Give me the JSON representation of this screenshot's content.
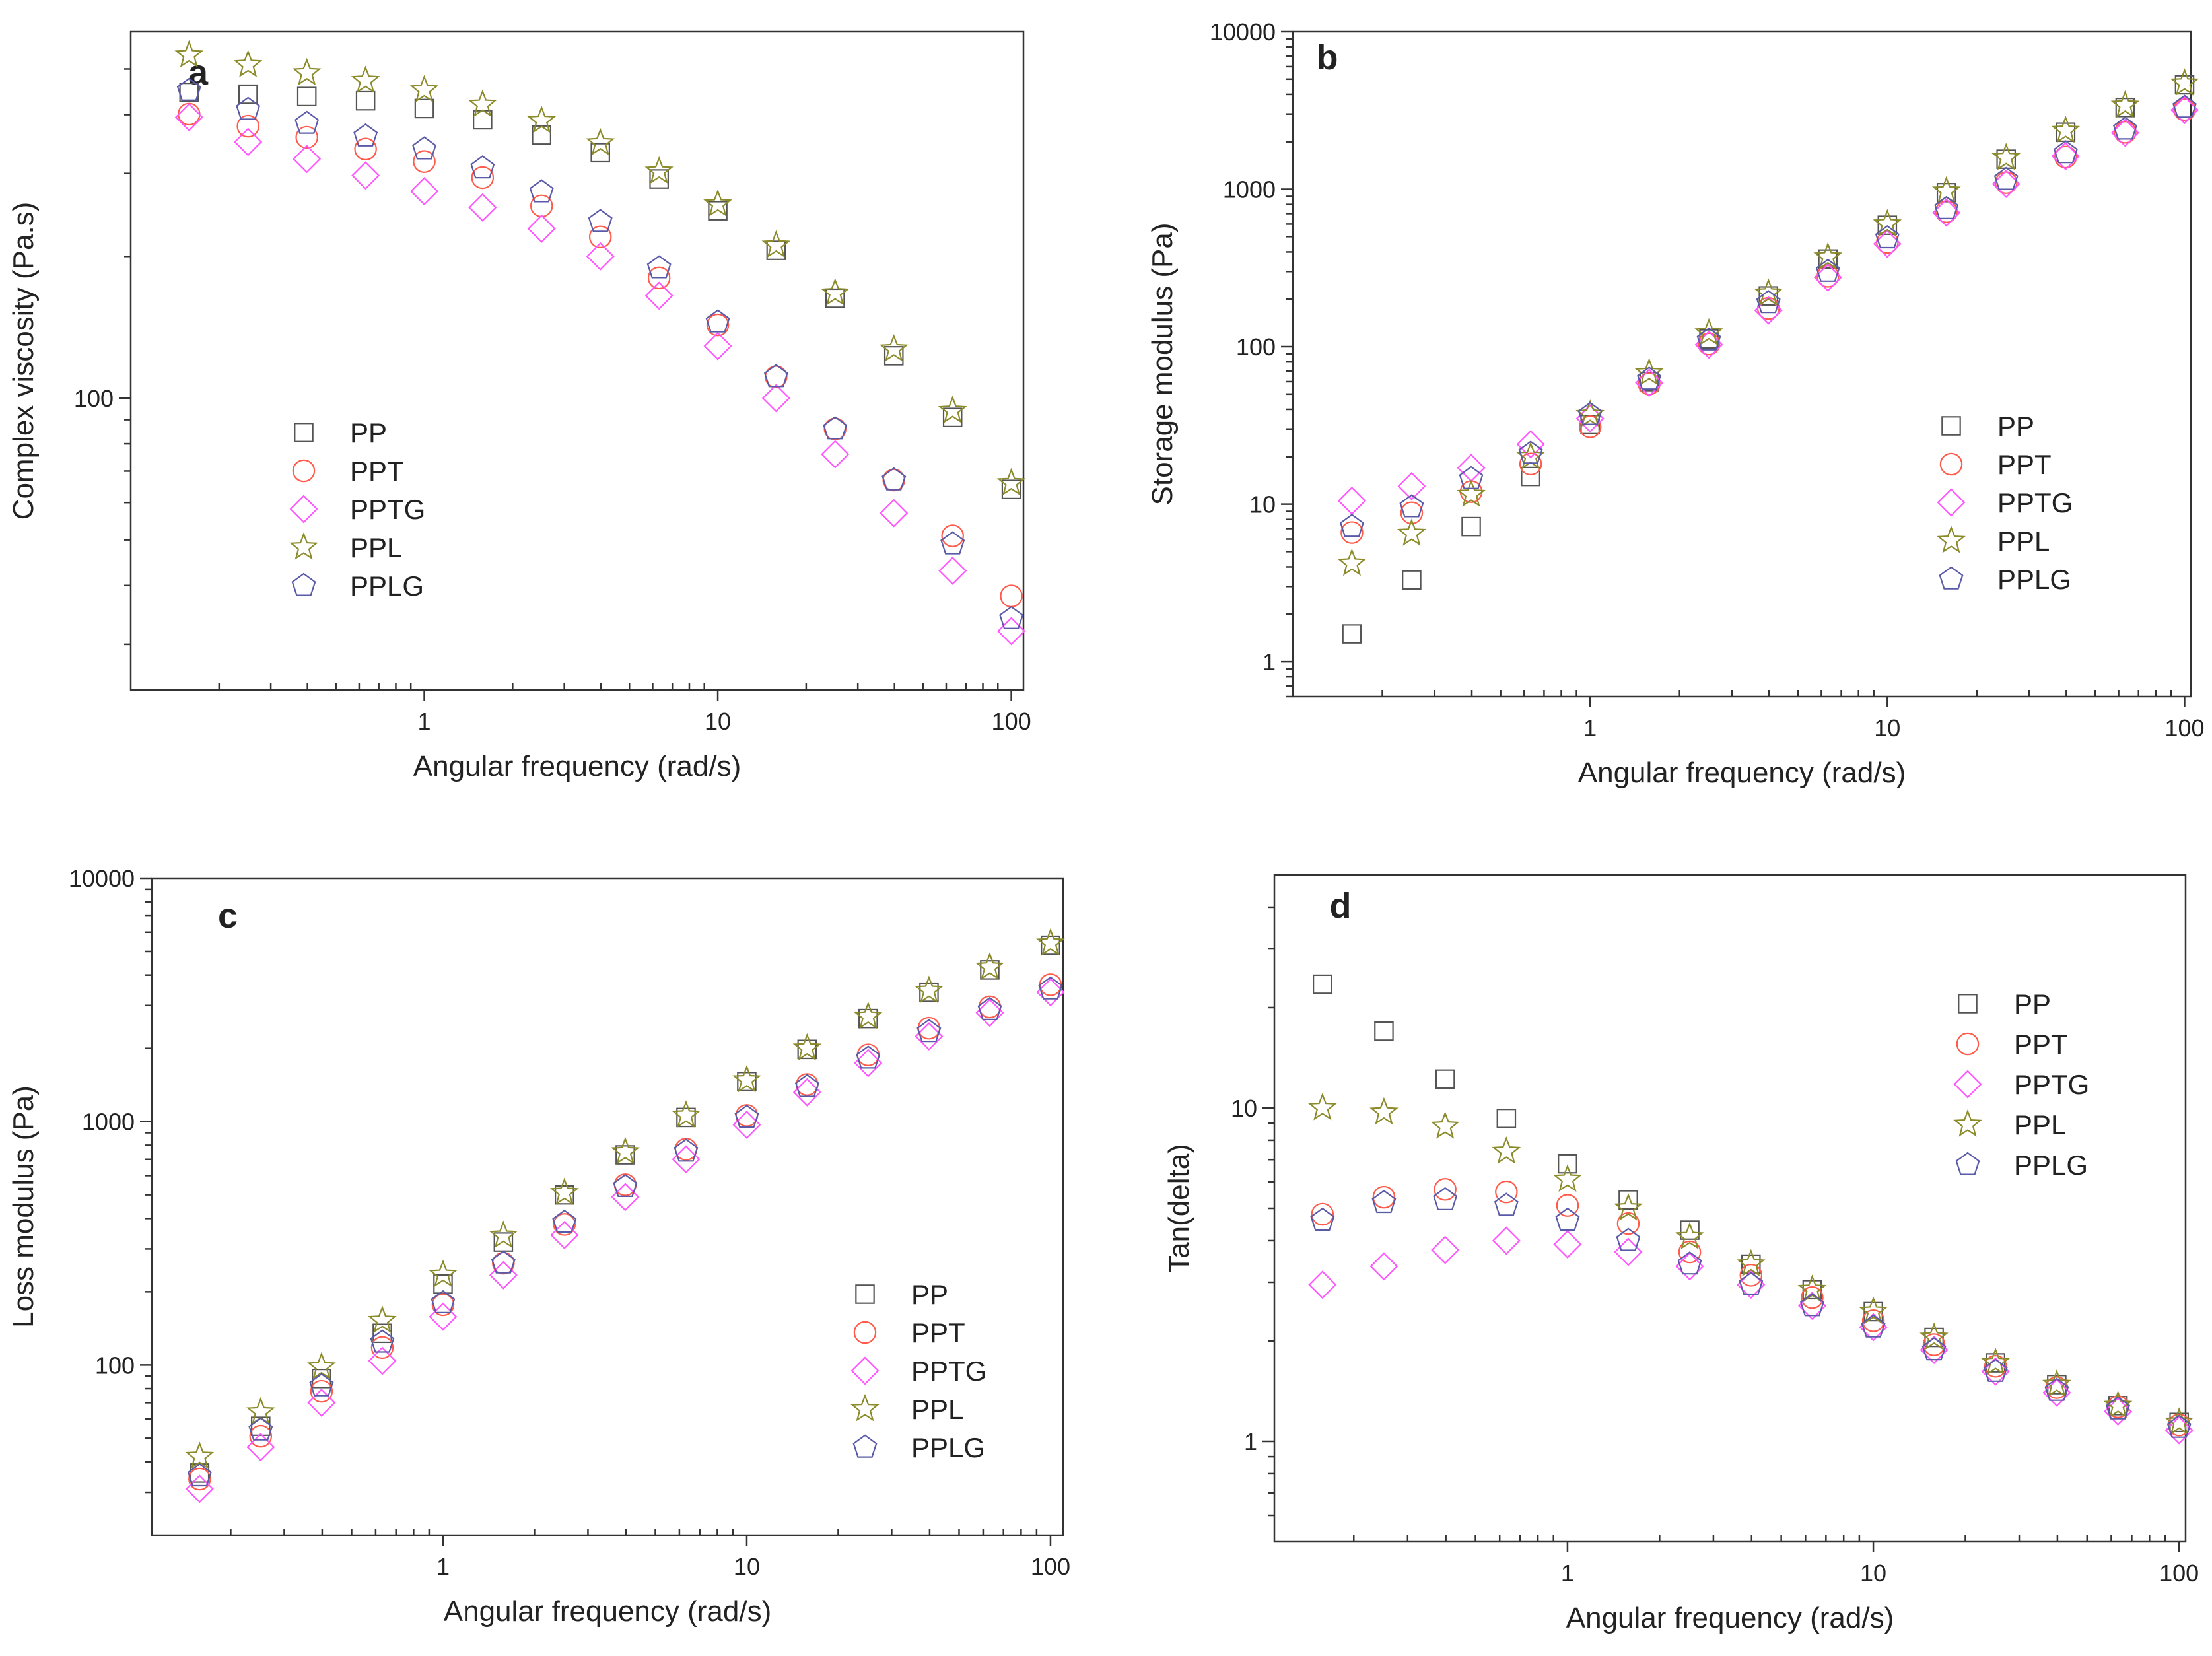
{
  "chart_data": [
    {
      "panel": "a",
      "type": "scatter",
      "xscale": "log",
      "yscale": "log",
      "xlabel": "Angular frequency (rad/s)",
      "ylabel": "Complex viscosity (Pa.s)",
      "xlim": [
        0.1,
        110
      ],
      "ylim": [
        24,
        600
      ],
      "xticks": [
        1,
        10,
        100
      ],
      "xtick_labels": [
        "1",
        "10",
        "100"
      ],
      "yticks": [
        100
      ],
      "ytick_labels": [
        "100"
      ],
      "legend_position": "center-left",
      "x": [
        0.158,
        0.251,
        0.398,
        0.631,
        1,
        1.58,
        2.51,
        3.98,
        6.31,
        10,
        15.8,
        25.1,
        39.8,
        63.1,
        100
      ],
      "series": [
        {
          "name": "PP",
          "marker": "square",
          "color": "#555555",
          "values": [
            446,
            442,
            437,
            428,
            412,
            390,
            362,
            332,
            292,
            250,
            206,
            163,
            123,
            91,
            64
          ]
        },
        {
          "name": "PPT",
          "marker": "circle",
          "color": "#ff5a4a",
          "values": [
            401,
            378,
            358,
            338,
            318,
            294,
            256,
            220,
            180,
            143,
            111,
            86,
            67,
            51,
            38
          ]
        },
        {
          "name": "PPTG",
          "marker": "diamond",
          "color": "#ff55ff",
          "values": [
            395,
            350,
            322,
            297,
            275,
            254,
            229,
            200,
            165,
            129,
            100,
            76,
            57,
            43,
            32
          ]
        },
        {
          "name": "PPL",
          "marker": "star",
          "color": "#8b8b2a",
          "values": [
            535,
            510,
            490,
            472,
            451,
            420,
            388,
            348,
            303,
            258,
            211,
            167,
            127,
            94,
            66
          ]
        },
        {
          "name": "PPLG",
          "marker": "pentagon",
          "color": "#5a5aa8",
          "values": [
            450,
            410,
            383,
            360,
            338,
            308,
            274,
            237,
            189,
            145,
            111,
            86,
            67,
            49,
            34
          ]
        }
      ]
    },
    {
      "panel": "b",
      "type": "scatter",
      "xscale": "log",
      "yscale": "log",
      "xlabel": "Angular frequency (rad/s)",
      "ylabel": "Storage modulus (Pa)",
      "xlim": [
        0.1,
        105
      ],
      "ylim": [
        0.6,
        10000
      ],
      "xticks": [
        1,
        10,
        100
      ],
      "xtick_labels": [
        "1",
        "10",
        "100"
      ],
      "yticks": [
        1,
        10,
        100,
        1000,
        10000
      ],
      "ytick_labels": [
        "1",
        "10",
        "100",
        "1000",
        "10000"
      ],
      "legend_position": "center-right",
      "x": [
        0.158,
        0.251,
        0.398,
        0.631,
        1,
        1.58,
        2.51,
        3.98,
        6.31,
        10,
        15.8,
        25.1,
        39.8,
        63.1,
        100
      ],
      "series": [
        {
          "name": "PP",
          "marker": "square",
          "color": "#555555",
          "values": [
            1.5,
            3.3,
            7.2,
            15,
            32,
            60,
            112,
            210,
            360,
            590,
            950,
            1550,
            2300,
            3300,
            4600
          ]
        },
        {
          "name": "PPT",
          "marker": "circle",
          "color": "#ff5a4a",
          "values": [
            6.6,
            8.8,
            12,
            18,
            31,
            58,
            104,
            175,
            280,
            460,
            720,
            1100,
            1600,
            2300,
            3200
          ]
        },
        {
          "name": "PPTG",
          "marker": "diamond",
          "color": "#ff55ff",
          "values": [
            10.5,
            13,
            17,
            24,
            35,
            59,
            103,
            170,
            275,
            450,
            710,
            1080,
            1620,
            2280,
            3180
          ]
        },
        {
          "name": "PPL",
          "marker": "star",
          "color": "#8b8b2a",
          "values": [
            4.2,
            6.5,
            11.5,
            20,
            37,
            68,
            122,
            218,
            370,
            600,
            970,
            1580,
            2350,
            3400,
            4700
          ]
        },
        {
          "name": "PPLG",
          "marker": "pentagon",
          "color": "#5a5aa8",
          "values": [
            7.2,
            9.6,
            14.5,
            21,
            37,
            62,
            110,
            190,
            300,
            490,
            750,
            1150,
            1700,
            2400,
            3300
          ]
        }
      ]
    },
    {
      "panel": "c",
      "type": "scatter",
      "xscale": "log",
      "yscale": "log",
      "xlabel": "Angular frequency (rad/s)",
      "ylabel": "Loss modulus (Pa)",
      "xlim": [
        0.11,
        110
      ],
      "ylim": [
        20,
        10000
      ],
      "xticks": [
        1,
        10,
        100
      ],
      "xtick_labels": [
        "1",
        "10",
        "100"
      ],
      "yticks": [
        100,
        1000,
        10000
      ],
      "ytick_labels": [
        "100",
        "1000",
        "10000"
      ],
      "legend_position": "bottom-right",
      "x": [
        0.158,
        0.251,
        0.398,
        0.631,
        1,
        1.58,
        2.51,
        3.98,
        6.31,
        10,
        15.8,
        25.1,
        39.8,
        63.1,
        100
      ],
      "series": [
        {
          "name": "PP",
          "marker": "square",
          "color": "#555555",
          "values": [
            36,
            56,
            88,
            135,
            215,
            320,
            500,
            730,
            1040,
            1460,
            1980,
            2650,
            3400,
            4200,
            5300
          ]
        },
        {
          "name": "PPT",
          "marker": "circle",
          "color": "#ff5a4a",
          "values": [
            34,
            51,
            78,
            118,
            177,
            262,
            378,
            550,
            770,
            1060,
            1420,
            1880,
            2420,
            2960,
            3650
          ]
        },
        {
          "name": "PPTG",
          "marker": "diamond",
          "color": "#ff55ff",
          "values": [
            31,
            46,
            70,
            104,
            158,
            234,
            342,
            490,
            700,
            970,
            1320,
            1740,
            2240,
            2800,
            3400
          ]
        },
        {
          "name": "PPL",
          "marker": "star",
          "color": "#8b8b2a",
          "values": [
            42,
            64,
            98,
            152,
            235,
            340,
            510,
            750,
            1060,
            1480,
            2000,
            2700,
            3450,
            4300,
            5400
          ]
        },
        {
          "name": "PPLG",
          "marker": "pentagon",
          "color": "#5a5aa8",
          "values": [
            35,
            54,
            82,
            124,
            180,
            262,
            385,
            540,
            755,
            1040,
            1390,
            1820,
            2340,
            2880,
            3500
          ]
        }
      ]
    },
    {
      "panel": "d",
      "type": "scatter",
      "xscale": "log",
      "yscale": "log",
      "xlabel": "Angular frequency (rad/s)",
      "ylabel": "Tan(delta)",
      "xlim": [
        0.11,
        105
      ],
      "ylim": [
        0.5,
        50
      ],
      "xticks": [
        1,
        10,
        100
      ],
      "xtick_labels": [
        "1",
        "10",
        "100"
      ],
      "yticks": [
        1,
        10
      ],
      "ytick_labels": [
        "1",
        "10"
      ],
      "legend_position": "top-right",
      "x": [
        0.158,
        0.251,
        0.398,
        0.631,
        1,
        1.58,
        2.51,
        3.98,
        6.31,
        10,
        15.8,
        25.1,
        39.8,
        63.1,
        100
      ],
      "series": [
        {
          "name": "PP",
          "marker": "square",
          "color": "#555555",
          "values": [
            23.5,
            17,
            12.2,
            9.3,
            6.8,
            5.3,
            4.3,
            3.4,
            2.85,
            2.45,
            2.05,
            1.72,
            1.48,
            1.28,
            1.14
          ]
        },
        {
          "name": "PPT",
          "marker": "circle",
          "color": "#ff5a4a",
          "values": [
            4.8,
            5.4,
            5.7,
            5.6,
            5.1,
            4.5,
            3.7,
            3.15,
            2.7,
            2.3,
            1.95,
            1.68,
            1.45,
            1.27,
            1.12
          ]
        },
        {
          "name": "PPTG",
          "marker": "diamond",
          "color": "#ff55ff",
          "values": [
            2.95,
            3.35,
            3.75,
            4.0,
            3.9,
            3.7,
            3.35,
            2.95,
            2.55,
            2.2,
            1.88,
            1.62,
            1.4,
            1.23,
            1.08
          ]
        },
        {
          "name": "PPL",
          "marker": "star",
          "color": "#8b8b2a",
          "values": [
            10,
            9.7,
            8.8,
            7.4,
            6.1,
            5.0,
            4.1,
            3.4,
            2.85,
            2.45,
            2.05,
            1.72,
            1.48,
            1.28,
            1.14
          ]
        },
        {
          "name": "PPLG",
          "marker": "pentagon",
          "color": "#5a5aa8",
          "values": [
            4.6,
            5.2,
            5.3,
            5.1,
            4.6,
            4.0,
            3.4,
            2.95,
            2.55,
            2.2,
            1.88,
            1.62,
            1.42,
            1.25,
            1.1
          ]
        }
      ]
    }
  ]
}
